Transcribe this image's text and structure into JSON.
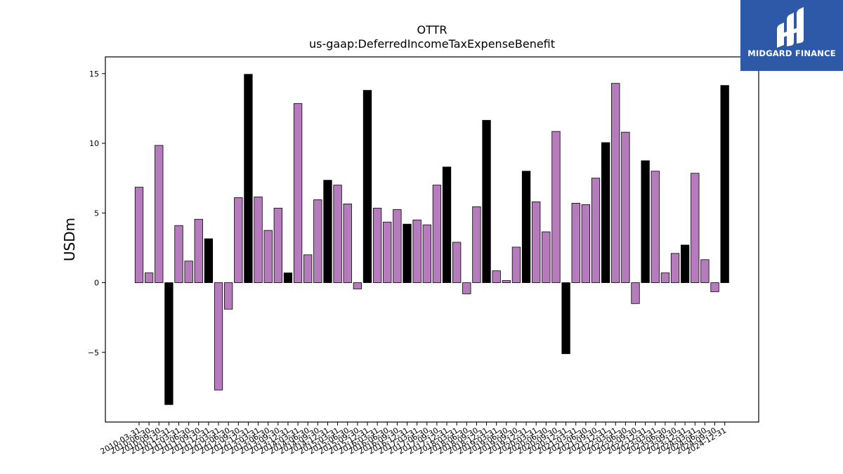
{
  "brand": {
    "name": "MIDGARD FINANCE",
    "color": "#2d59a8"
  },
  "chart_data": {
    "type": "bar",
    "title": "OTTR",
    "subtitle": "us-gaap:DeferredIncomeTaxExpenseBenefit",
    "ylabel": "USDm",
    "xlabel": "",
    "ylim": [
      -10,
      16.2
    ],
    "yticks": [
      -5,
      0,
      5,
      10,
      15
    ],
    "grid": false,
    "colors": {
      "quarter": "#b67bbc",
      "year_end": "#000000"
    },
    "categories": [
      "2010-03-31",
      "2010-06-30",
      "2010-09-30",
      "2010-12-31",
      "2011-03-31",
      "2011-06-30",
      "2011-09-30",
      "2011-12-31",
      "2012-03-31",
      "2012-06-30",
      "2012-09-30",
      "2012-12-31",
      "2013-03-31",
      "2013-06-30",
      "2013-09-30",
      "2013-12-31",
      "2014-03-31",
      "2014-06-30",
      "2014-09-30",
      "2014-12-31",
      "2015-03-31",
      "2015-06-30",
      "2015-09-30",
      "2015-12-31",
      "2016-03-31",
      "2016-06-30",
      "2016-09-30",
      "2016-12-31",
      "2017-03-31",
      "2017-06-30",
      "2017-09-30",
      "2017-12-31",
      "2018-03-31",
      "2018-06-30",
      "2018-09-30",
      "2018-12-31",
      "2019-03-31",
      "2019-06-30",
      "2019-09-30",
      "2019-12-31",
      "2020-03-31",
      "2020-06-30",
      "2020-09-30",
      "2020-12-31",
      "2021-03-31",
      "2021-06-30",
      "2021-09-30",
      "2021-12-31",
      "2022-03-31",
      "2022-06-30",
      "2022-09-30",
      "2022-12-31",
      "2023-03-31",
      "2023-06-30",
      "2023-09-30",
      "2023-12-31",
      "2024-03-31",
      "2024-06-30",
      "2024-09-30",
      "2024-12-31"
    ],
    "values": [
      6.85,
      0.7,
      9.85,
      -8.75,
      4.1,
      1.55,
      4.55,
      3.15,
      -7.7,
      -1.9,
      6.1,
      14.95,
      6.15,
      3.75,
      5.35,
      0.7,
      12.85,
      2.0,
      5.95,
      7.35,
      7.0,
      5.65,
      -0.45,
      13.8,
      5.35,
      4.35,
      5.25,
      4.2,
      4.5,
      4.15,
      7.0,
      8.3,
      2.9,
      -0.8,
      5.45,
      11.65,
      0.85,
      0.15,
      2.55,
      8.0,
      5.8,
      3.65,
      10.85,
      -5.1,
      5.7,
      5.6,
      7.5,
      10.05,
      14.3,
      10.8,
      -1.5,
      8.75,
      8.0,
      0.7,
      2.1,
      2.7,
      7.85,
      1.65,
      -0.65,
      14.15
    ]
  }
}
